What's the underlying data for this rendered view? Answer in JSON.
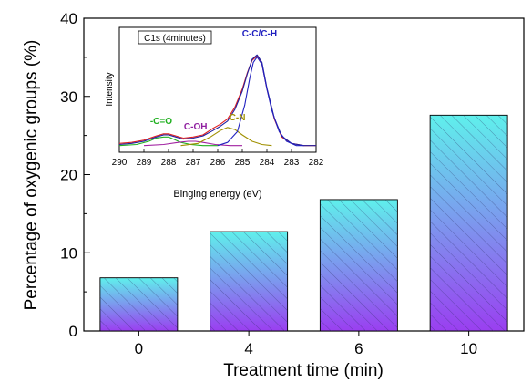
{
  "chart_data": [
    {
      "type": "bar",
      "categories": [
        "0",
        "4",
        "6",
        "10"
      ],
      "values": [
        6.8,
        12.7,
        16.8,
        27.6
      ],
      "xlabel": "Treatment time (min)",
      "ylabel": "Percentage of oxygenic groups (%)",
      "ylim": [
        0,
        40
      ],
      "yticks": [
        0,
        10,
        20,
        30,
        40
      ],
      "grid": false,
      "bar_gradient": [
        "#5ff0ec",
        "#9a3ff0"
      ],
      "bar_hatch": "diagonal"
    },
    {
      "type": "line",
      "inset": true,
      "panel_label": "C1s (4minutes)",
      "xlabel": "Binging energy (eV)",
      "ylabel": "Intensity",
      "xlim": [
        290,
        282
      ],
      "xticks": [
        290,
        289,
        288,
        287,
        286,
        285,
        284,
        283,
        282
      ],
      "annotations": [
        {
          "text": "C-C/C-H",
          "x": 284.3,
          "color": "#2020c0"
        },
        {
          "text": "C-N",
          "x": 285.2,
          "color": "#a09000"
        },
        {
          "text": "C-OH",
          "x": 286.9,
          "color": "#9020a0"
        },
        {
          "text": "-C=O",
          "x": 288.3,
          "color": "#20b020"
        }
      ],
      "series": [
        {
          "color": "#e02020",
          "x": [
            290,
            289.5,
            289,
            288.5,
            288.2,
            288,
            287.7,
            287.4,
            287,
            286.6,
            286.2,
            285.9,
            285.6,
            285.3,
            285,
            284.8,
            284.6,
            284.4,
            284.2,
            284,
            283.7,
            283.4,
            283,
            282.5,
            282
          ],
          "y": [
            0.04,
            0.05,
            0.07,
            0.11,
            0.13,
            0.13,
            0.11,
            0.09,
            0.1,
            0.12,
            0.18,
            0.22,
            0.27,
            0.38,
            0.55,
            0.7,
            0.82,
            0.86,
            0.78,
            0.55,
            0.27,
            0.1,
            0.04,
            0.02,
            0.02
          ]
        },
        {
          "color": "#2020a0",
          "x": [
            290,
            289.5,
            289,
            288.5,
            288.2,
            288,
            287.7,
            287.4,
            287,
            286.6,
            286.2,
            285.9,
            285.6,
            285.3,
            285,
            284.8,
            284.6,
            284.4,
            284.2,
            284,
            283.7,
            283.4,
            283,
            282.5,
            282
          ],
          "y": [
            0.03,
            0.04,
            0.06,
            0.1,
            0.12,
            0.12,
            0.1,
            0.08,
            0.09,
            0.11,
            0.16,
            0.2,
            0.25,
            0.36,
            0.53,
            0.69,
            0.83,
            0.87,
            0.8,
            0.56,
            0.28,
            0.11,
            0.04,
            0.02,
            0.02
          ]
        },
        {
          "color": "#20b020",
          "x": [
            290,
            289.3,
            288.8,
            288.5,
            288.2,
            288,
            287.8,
            287.5,
            287.1,
            286.6,
            286
          ],
          "y": [
            0.02,
            0.03,
            0.06,
            0.09,
            0.1,
            0.1,
            0.08,
            0.05,
            0.03,
            0.02,
            0.02
          ]
        },
        {
          "color": "#a020a0",
          "x": [
            289,
            288.2,
            287.6,
            287.2,
            286.9,
            286.6,
            286.1,
            285.5,
            285
          ],
          "y": [
            0.02,
            0.03,
            0.05,
            0.06,
            0.06,
            0.05,
            0.03,
            0.02,
            0.02
          ]
        },
        {
          "color": "#a09000",
          "x": [
            287.5,
            286.8,
            286.3,
            285.9,
            285.6,
            285.3,
            285,
            284.6,
            284.2,
            283.8
          ],
          "y": [
            0.02,
            0.04,
            0.1,
            0.16,
            0.19,
            0.17,
            0.12,
            0.06,
            0.03,
            0.02
          ]
        },
        {
          "color": "#2020c0",
          "x": [
            286,
            285.6,
            285.2,
            284.9,
            284.7,
            284.55,
            284.4,
            284.2,
            284,
            283.8,
            283.5,
            283.2,
            282.8,
            282.5
          ],
          "y": [
            0.02,
            0.05,
            0.15,
            0.4,
            0.65,
            0.8,
            0.85,
            0.78,
            0.55,
            0.35,
            0.15,
            0.06,
            0.02,
            0.02
          ]
        }
      ]
    }
  ]
}
